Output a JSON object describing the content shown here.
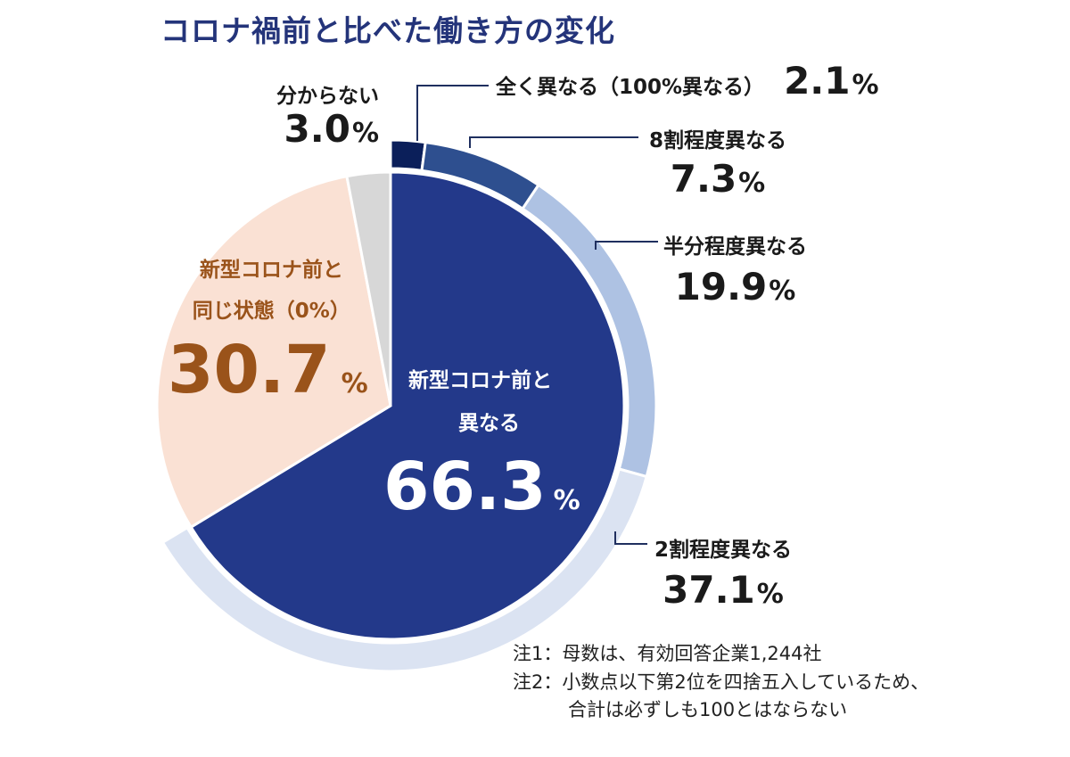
{
  "title": "コロナ禍前と比べた働き方の変化",
  "colors": {
    "different_total": "#23398a",
    "same": "#fae1d4",
    "unknown": "#d7d7d7",
    "all_diff": "#0b1f5a",
    "eighty": "#2e4f8f",
    "half": "#aec2e3",
    "twenty": "#dbe3f2",
    "same_text": "#9a531a",
    "leader": "#1f2f5f"
  },
  "chart_data": {
    "type": "pie",
    "title": "コロナ禍前と比べた働き方の変化",
    "unit": "%",
    "inner": [
      {
        "label": "新型コロナ前と異なる",
        "value": 66.3
      },
      {
        "label": "新型コロナ前と同じ状態（0%）",
        "value": 30.7
      },
      {
        "label": "分からない",
        "value": 3.0
      }
    ],
    "outer": [
      {
        "label": "全く異なる（100%異なる）",
        "value": 2.1
      },
      {
        "label": "8割程度異なる",
        "value": 7.3
      },
      {
        "label": "半分程度異なる",
        "value": 19.9
      },
      {
        "label": "2割程度異なる",
        "value": 37.1
      }
    ]
  },
  "labels": {
    "unknown_name": "分からない",
    "unknown_value": "3.0",
    "same_name_1": "新型コロナ前と",
    "same_name_2": "同じ状態（0%）",
    "same_value": "30.7",
    "diff_name_1": "新型コロナ前と",
    "diff_name_2": "異なる",
    "diff_value": "66.3",
    "all_name": "全く異なる（100%異なる）",
    "all_value": "2.1",
    "eighty_name": "8割程度異なる",
    "eighty_value": "7.3",
    "half_name": "半分程度異なる",
    "half_value": "19.9",
    "twenty_name": "2割程度異なる",
    "twenty_value": "37.1",
    "percent": "%"
  },
  "notes": {
    "note1": "注1：母数は、有効回答企業1,244社",
    "note2": "注2：小数点以下第2位を四捨五入しているため、",
    "note2b": "合計は必ずしも100とはならない"
  }
}
